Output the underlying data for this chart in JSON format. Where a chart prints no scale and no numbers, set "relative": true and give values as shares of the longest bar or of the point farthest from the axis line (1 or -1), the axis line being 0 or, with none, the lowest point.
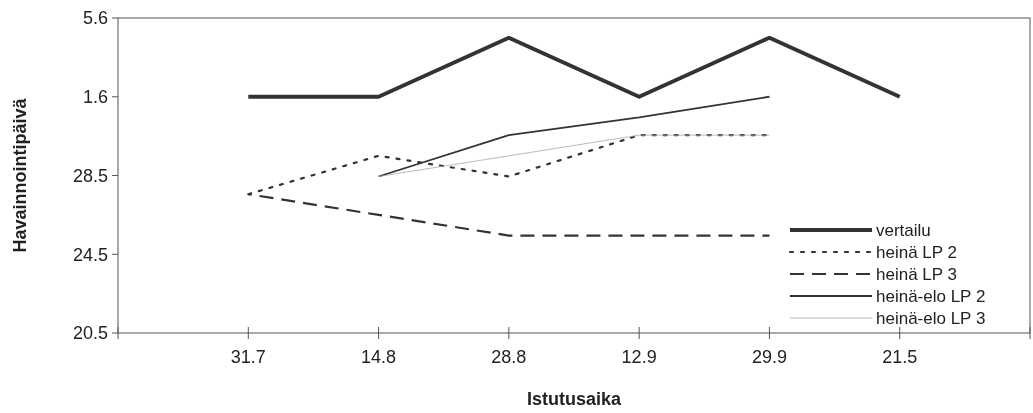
{
  "chart_data": {
    "type": "line",
    "relative": true,
    "xlabel": "Istutusaika",
    "ylabel": "Havainnointipäivä",
    "categories": [
      "31.7",
      "14.8",
      "28.8",
      "12.9",
      "29.9",
      "21.5"
    ],
    "annotations": [
      "20.5",
      "24.5",
      "28.5",
      "1.6",
      "5.6"
    ],
    "grid": false,
    "legend": "bottom right",
    "marker": "none",
    "series": [
      {
        "name": "vertailu",
        "color": "#333333",
        "line_style": "solid",
        "values": [
          0.8,
          0.8,
          1,
          0.8,
          1,
          0.8
        ]
      },
      {
        "name": "heinä LP 2",
        "color": "#333333",
        "line_style": "dotted",
        "values": [
          0.47,
          0.6,
          0.53,
          0.67,
          0.67,
          null
        ]
      },
      {
        "name": "heinä LP 3",
        "color": "#333333",
        "line_style": "dashed",
        "values": [
          0.47,
          0.4,
          0.33,
          0.33,
          0.33,
          null
        ]
      },
      {
        "name": "heinä-elo LP 2",
        "color": "#333333",
        "line_style": "solid",
        "values": [
          null,
          0.53,
          0.67,
          0.73,
          0.8,
          null
        ]
      },
      {
        "name": "heinä-elo LP 3",
        "color": "#aaaaaa",
        "line_style": "solid",
        "values": [
          null,
          0.53,
          0.6,
          0.67,
          0.67,
          null
        ]
      }
    ]
  }
}
